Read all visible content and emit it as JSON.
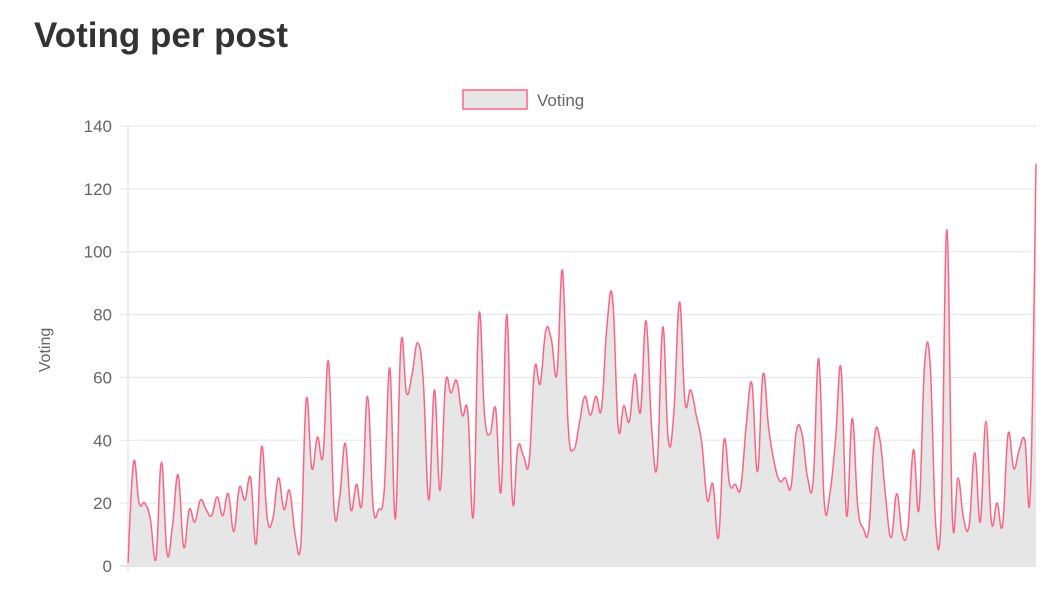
{
  "page": {
    "title": "Voting per post"
  },
  "chart_data": {
    "type": "area",
    "title": "",
    "xlabel": "",
    "ylabel": "Voting",
    "ylim": [
      0,
      140
    ],
    "yticks": [
      "0",
      "20",
      "40",
      "60",
      "80",
      "100",
      "120",
      "140"
    ],
    "grid": true,
    "legend": {
      "position": "top-center",
      "entries": [
        "Voting"
      ]
    },
    "series": [
      {
        "name": "Voting",
        "line_color": "#ff6384",
        "fill_color": "#e6e6e6",
        "values": [
          1,
          33,
          20,
          20,
          15,
          2,
          33,
          4,
          13,
          29,
          6,
          18,
          14,
          21,
          18,
          16,
          22,
          16,
          23,
          11,
          25,
          21,
          28,
          7,
          38,
          15,
          15,
          28,
          18,
          24,
          10,
          6,
          53,
          31,
          41,
          35,
          65,
          18,
          22,
          39,
          18,
          26,
          20,
          54,
          19,
          18,
          24,
          63,
          15,
          71,
          55,
          61,
          71,
          59,
          21,
          56,
          24,
          58,
          55,
          59,
          48,
          49,
          16,
          80,
          48,
          42,
          50,
          24,
          80,
          21,
          38,
          35,
          33,
          63,
          58,
          75,
          72,
          61,
          94,
          45,
          37,
          45,
          54,
          48,
          54,
          50,
          77,
          85,
          44,
          51,
          46,
          61,
          49,
          78,
          44,
          32,
          76,
          40,
          49,
          84,
          52,
          56,
          48,
          39,
          21,
          26,
          9,
          40,
          26,
          26,
          25,
          45,
          58,
          30,
          61,
          44,
          33,
          27,
          28,
          25,
          43,
          42,
          28,
          27,
          66,
          20,
          23,
          40,
          63,
          16,
          47,
          19,
          12,
          12,
          41,
          40,
          22,
          9,
          23,
          10,
          12,
          37,
          18,
          64,
          64,
          13,
          17,
          107,
          15,
          28,
          15,
          13,
          36,
          14,
          46,
          14,
          20,
          13,
          42,
          31,
          37,
          40,
          24,
          128
        ]
      }
    ]
  }
}
